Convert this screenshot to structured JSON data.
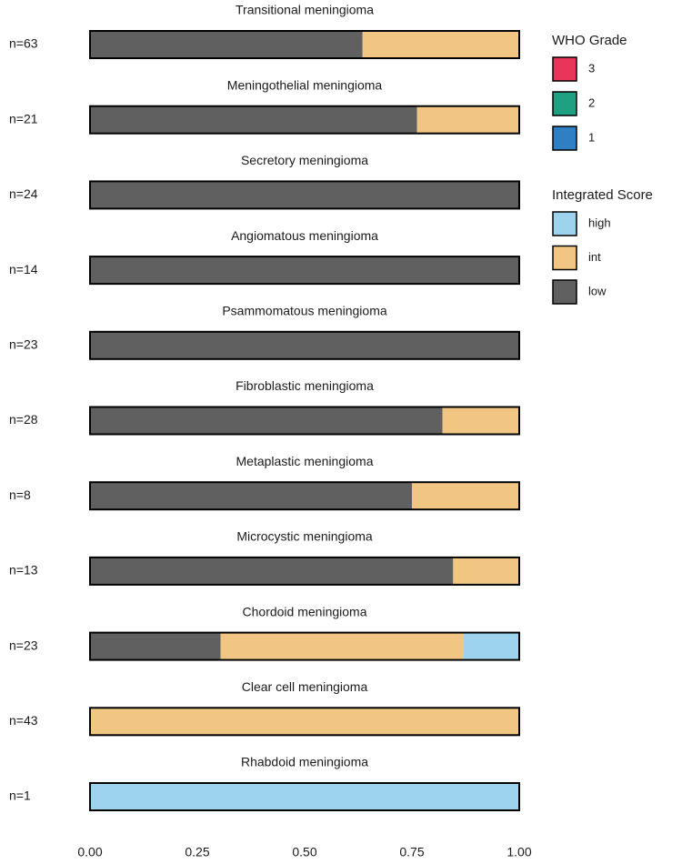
{
  "chart_data": {
    "type": "bar",
    "orientation": "horizontal",
    "stacked": true,
    "categories": [
      "Transitional meningioma",
      "Meningothelial meningioma",
      "Secretory meningioma",
      "Angiomatous meningioma",
      "Psammomatous meningioma",
      "Fibroblastic meningioma",
      "Metaplastic meningioma",
      "Microcystic meningioma",
      "Chordoid meningioma",
      "Clear cell meningioma",
      "Rhabdoid meningioma"
    ],
    "sample_labels": [
      "n=63",
      "n=21",
      "n=24",
      "n=14",
      "n=23",
      "n=28",
      "n=8",
      "n=13",
      "n=23",
      "n=43",
      "n=1"
    ],
    "series": [
      {
        "name": "low",
        "color": "#606060",
        "values": [
          0.635,
          0.762,
          1,
          1,
          1,
          0.821,
          0.75,
          0.846,
          0.304,
          0,
          0
        ]
      },
      {
        "name": "int",
        "color": "#f0c682",
        "values": [
          0.365,
          0.238,
          0,
          0,
          0,
          0.179,
          0.25,
          0.154,
          0.565,
          1,
          0
        ]
      },
      {
        "name": "high",
        "color": "#9dd3ec",
        "values": [
          0,
          0,
          0,
          0,
          0,
          0,
          0,
          0,
          0.131,
          0,
          1
        ]
      }
    ],
    "legend_title": "Integrated Score",
    "extra_legend": {
      "title": "WHO Grade",
      "entries": [
        {
          "name": "3",
          "color": "#e8365a"
        },
        {
          "name": "2",
          "color": "#20a082"
        },
        {
          "name": "1",
          "color": "#2f7fc5"
        }
      ]
    },
    "xlim": [
      0,
      1
    ],
    "xticks": [
      {
        "value": 0,
        "label": "0.00"
      },
      {
        "value": 0.25,
        "label": "0.25"
      },
      {
        "value": 0.5,
        "label": "0.50"
      },
      {
        "value": 0.75,
        "label": "0.75"
      },
      {
        "value": 1,
        "label": "1.00"
      }
    ],
    "grid": false
  }
}
